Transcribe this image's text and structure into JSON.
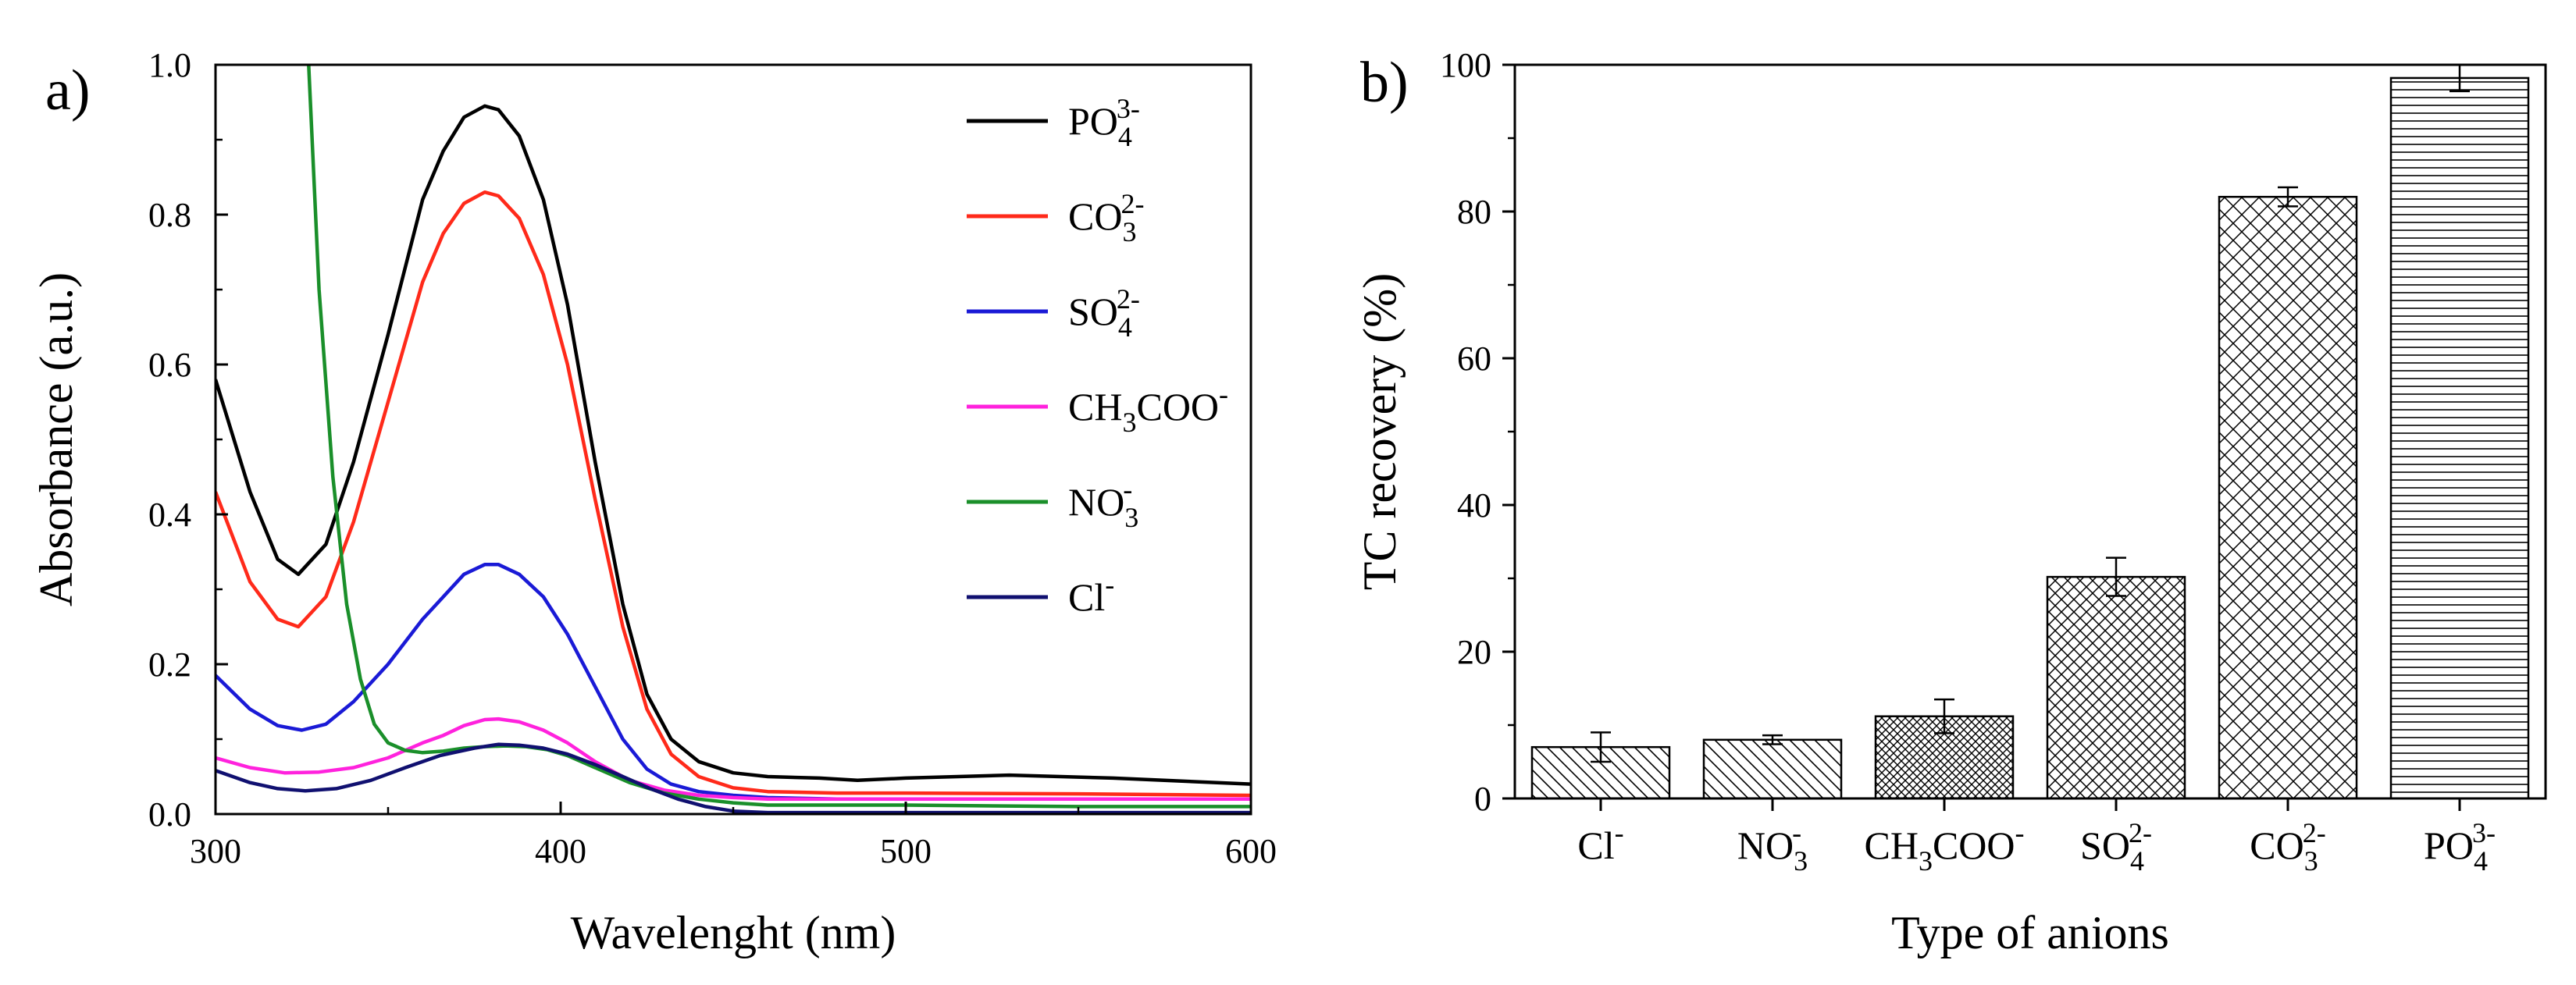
{
  "chart_data": [
    {
      "panel": "a)",
      "type": "line",
      "xlabel": "Wavelenght (nm)",
      "ylabel": "Absorbance (a.u.)",
      "xlim": [
        300,
        600
      ],
      "ylim": [
        0,
        1.0
      ],
      "xticks": [
        "300",
        "400",
        "500",
        "600"
      ],
      "yticks": [
        "0.0",
        "0.2",
        "0.4",
        "0.6",
        "0.8",
        "1.0"
      ],
      "legend_position": "top-right",
      "series": [
        {
          "name": "PO4 3-",
          "label_main": "PO",
          "label_sub": "4",
          "label_sup": "3-",
          "color": "#000000",
          "x": [
            300,
            310,
            318,
            324,
            332,
            340,
            350,
            360,
            366,
            372,
            378,
            382,
            388,
            395,
            402,
            410,
            418,
            425,
            432,
            440,
            450,
            460,
            475,
            486,
            500,
            530,
            560,
            600
          ],
          "y": [
            0.58,
            0.43,
            0.34,
            0.32,
            0.36,
            0.47,
            0.64,
            0.82,
            0.885,
            0.93,
            0.945,
            0.94,
            0.905,
            0.82,
            0.68,
            0.47,
            0.28,
            0.16,
            0.1,
            0.07,
            0.055,
            0.05,
            0.048,
            0.045,
            0.048,
            0.052,
            0.048,
            0.04
          ]
        },
        {
          "name": "CO3 2-",
          "label_main": "CO",
          "label_sub": "3",
          "label_sup": "2-",
          "color": "#ff2a1a",
          "x": [
            300,
            310,
            318,
            324,
            332,
            340,
            350,
            360,
            366,
            372,
            378,
            382,
            388,
            395,
            402,
            410,
            418,
            425,
            432,
            440,
            450,
            460,
            480,
            500,
            550,
            600
          ],
          "y": [
            0.43,
            0.31,
            0.26,
            0.25,
            0.29,
            0.39,
            0.55,
            0.71,
            0.775,
            0.815,
            0.83,
            0.825,
            0.795,
            0.72,
            0.6,
            0.42,
            0.25,
            0.14,
            0.08,
            0.05,
            0.035,
            0.03,
            0.028,
            0.028,
            0.027,
            0.025
          ]
        },
        {
          "name": "SO4 2-",
          "label_main": "SO",
          "label_sub": "4",
          "label_sup": "2-",
          "color": "#1a1ad6",
          "x": [
            300,
            310,
            318,
            325,
            332,
            340,
            350,
            360,
            366,
            372,
            378,
            382,
            388,
            395,
            402,
            410,
            418,
            425,
            432,
            440,
            450,
            460,
            480,
            500,
            550,
            600
          ],
          "y": [
            0.185,
            0.14,
            0.118,
            0.112,
            0.12,
            0.15,
            0.2,
            0.26,
            0.29,
            0.32,
            0.333,
            0.333,
            0.32,
            0.29,
            0.24,
            0.17,
            0.1,
            0.06,
            0.04,
            0.03,
            0.025,
            0.022,
            0.02,
            0.02,
            0.02,
            0.02
          ]
        },
        {
          "name": "CH3COO-",
          "label_main": "CH",
          "label_sub": "3",
          "label_rest": "COO",
          "label_sup": "-",
          "color": "#ff22dd",
          "x": [
            300,
            310,
            320,
            330,
            340,
            350,
            360,
            366,
            372,
            378,
            382,
            388,
            395,
            402,
            410,
            420,
            430,
            440,
            450,
            460,
            480,
            500,
            550,
            600
          ],
          "y": [
            0.075,
            0.062,
            0.055,
            0.056,
            0.062,
            0.075,
            0.095,
            0.105,
            0.118,
            0.126,
            0.127,
            0.123,
            0.112,
            0.095,
            0.07,
            0.045,
            0.032,
            0.025,
            0.022,
            0.02,
            0.02,
            0.02,
            0.02,
            0.02
          ]
        },
        {
          "name": "NO3-",
          "label_main": "NO",
          "label_sub": "3",
          "label_sup": "-",
          "color": "#1a8f2a",
          "x": [
            327,
            330,
            334,
            338,
            342,
            346,
            350,
            355,
            360,
            366,
            372,
            378,
            384,
            390,
            396,
            402,
            410,
            420,
            430,
            440,
            450,
            460,
            480,
            500,
            550,
            600
          ],
          "y": [
            1.0,
            0.7,
            0.45,
            0.28,
            0.18,
            0.12,
            0.095,
            0.085,
            0.082,
            0.084,
            0.088,
            0.09,
            0.091,
            0.09,
            0.086,
            0.078,
            0.062,
            0.042,
            0.028,
            0.02,
            0.015,
            0.012,
            0.012,
            0.012,
            0.01,
            0.01
          ]
        },
        {
          "name": "Cl-",
          "label_main": "Cl",
          "label_sup": "-",
          "color": "#101070",
          "x": [
            300,
            310,
            318,
            326,
            335,
            345,
            355,
            365,
            375,
            382,
            388,
            395,
            402,
            410,
            418,
            426,
            434,
            442,
            450,
            460,
            480,
            500,
            550,
            600
          ],
          "y": [
            0.058,
            0.042,
            0.034,
            0.031,
            0.034,
            0.045,
            0.062,
            0.078,
            0.088,
            0.093,
            0.092,
            0.088,
            0.08,
            0.066,
            0.05,
            0.034,
            0.02,
            0.01,
            0.004,
            0.002,
            0.002,
            0.002,
            0.002,
            0.002
          ]
        }
      ]
    },
    {
      "panel": "b)",
      "type": "bar",
      "xlabel": "Type of anions",
      "ylabel": "TC recovery (%)",
      "ylim": [
        0,
        100
      ],
      "yticks": [
        "0",
        "20",
        "40",
        "60",
        "80",
        "100"
      ],
      "categories": [
        {
          "name": "Cl-",
          "main": "Cl",
          "sub": "",
          "sup": "-"
        },
        {
          "name": "NO3-",
          "main": "NO",
          "sub": "3",
          "sup": "-"
        },
        {
          "name": "CH3COO-",
          "main": "CH",
          "sub": "3",
          "rest": "COO",
          "sup": "-"
        },
        {
          "name": "SO4 2-",
          "main": "SO",
          "sub": "4",
          "sup": "2-"
        },
        {
          "name": "CO3 2-",
          "main": "CO",
          "sub": "3",
          "sup": "2-"
        },
        {
          "name": "PO4 3-",
          "main": "PO",
          "sub": "4",
          "sup": "3-"
        }
      ],
      "values": [
        7.0,
        8.0,
        11.2,
        30.2,
        82.0,
        98.2
      ],
      "errors": [
        2.0,
        0.6,
        2.3,
        2.6,
        1.3,
        1.8
      ],
      "patterns": [
        "diag-right",
        "diag-right",
        "crosshatch-dense",
        "crosshatch",
        "crosshatch-sparse",
        "horizontal"
      ]
    }
  ]
}
